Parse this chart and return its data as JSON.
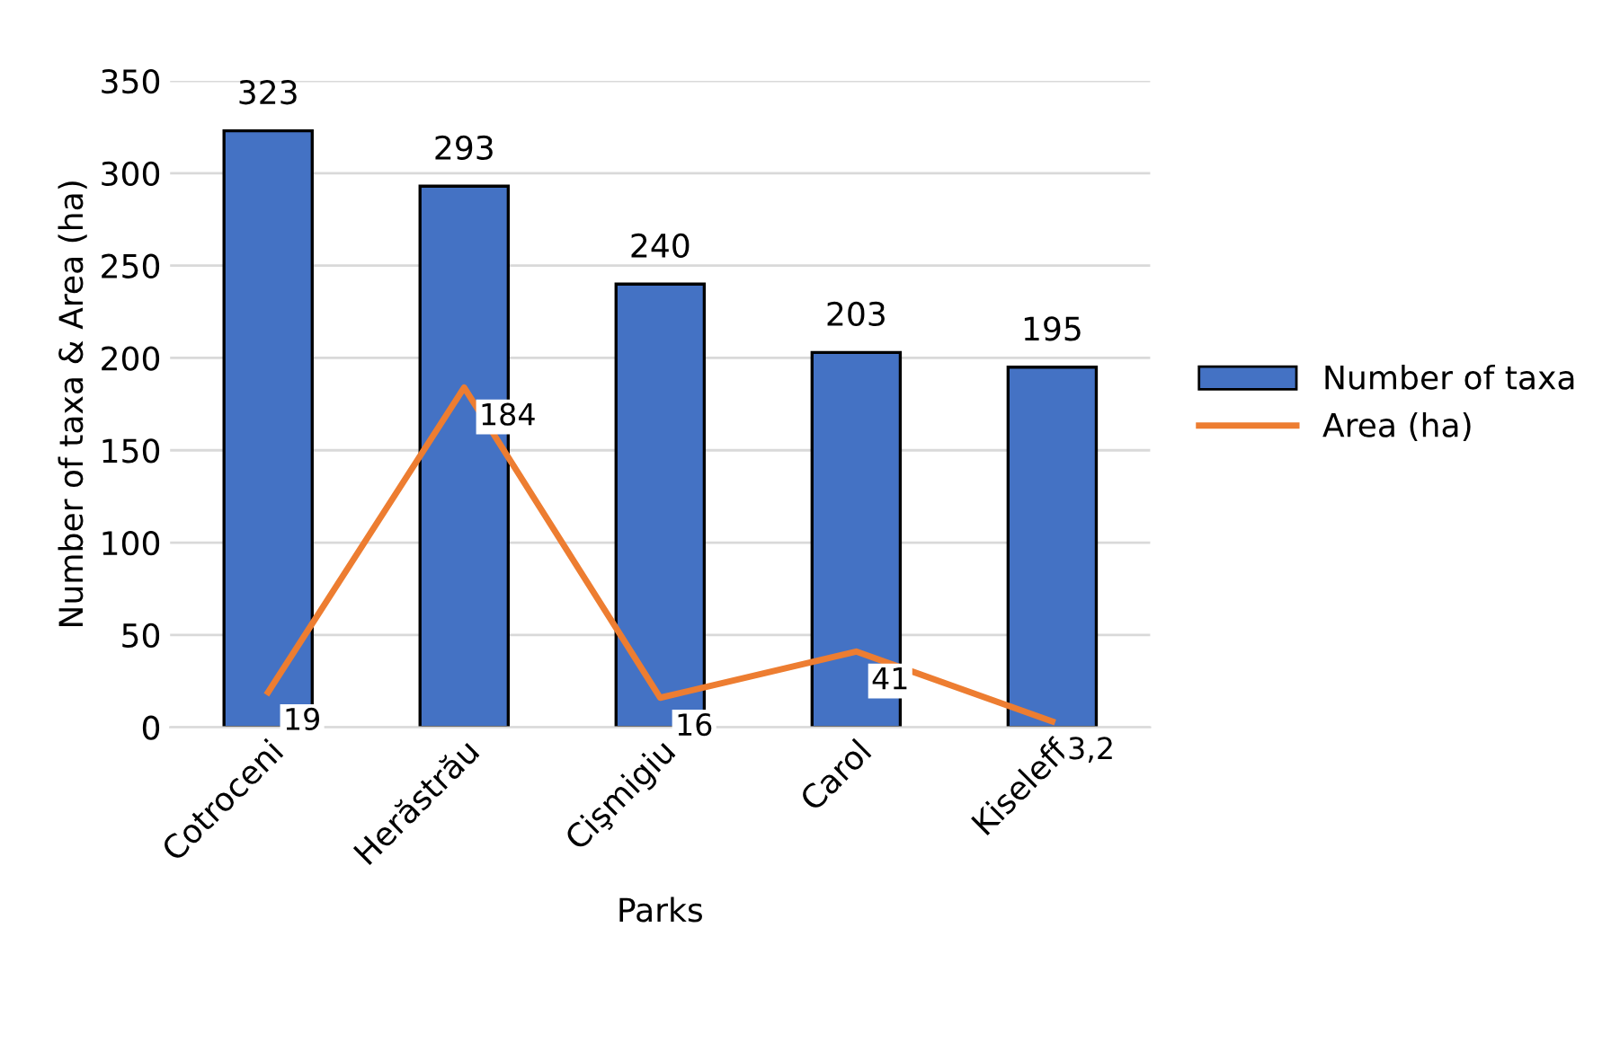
{
  "chart_data": {
    "type": "bar",
    "xlabel": "Parks",
    "ylabel": "Number of taxa & Area (ha)",
    "categories": [
      "Cotroceni",
      "Herăstrău",
      "Cişmigiu",
      "Carol",
      "Kiseleff"
    ],
    "series": [
      {
        "name": "Number of taxa",
        "color": "#4472c4",
        "values": [
          323,
          293,
          240,
          203,
          195
        ],
        "value_labels": [
          "323",
          "293",
          "240",
          "203",
          "195"
        ]
      },
      {
        "name": "Area (ha)",
        "type": "line",
        "color": "#ed7d31",
        "values": [
          19,
          184,
          16,
          41,
          3.2
        ],
        "value_labels": [
          "19",
          "184",
          "16",
          "41",
          "3,2"
        ],
        "marker": "none",
        "line_style": "solid"
      }
    ],
    "ylim": [
      0,
      350
    ],
    "yticks": [
      0,
      50,
      100,
      150,
      200,
      250,
      300,
      350
    ],
    "grid": "y",
    "legend": "right"
  }
}
